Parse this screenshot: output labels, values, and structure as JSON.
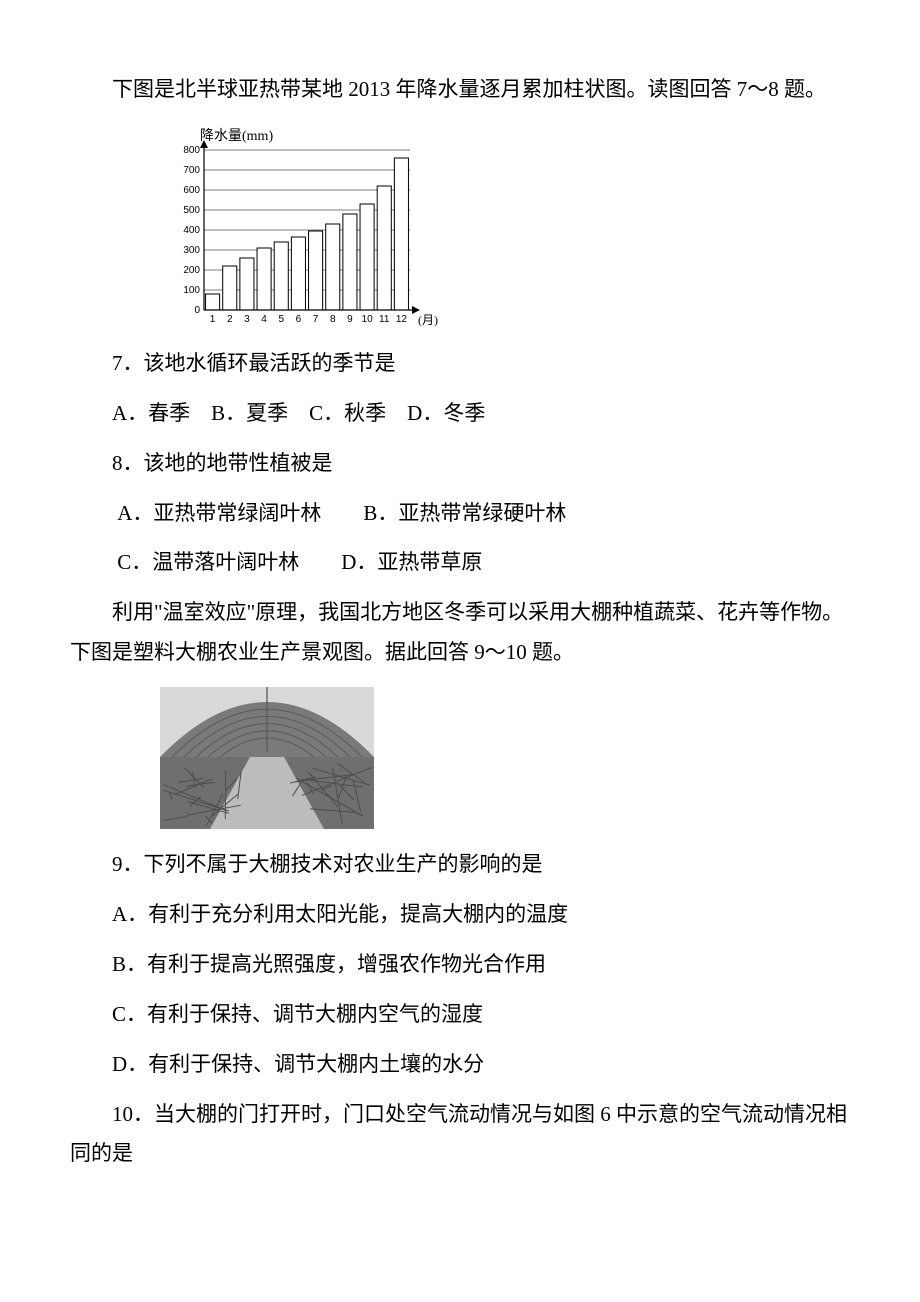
{
  "intro1": "下图是北半球亚热带某地 2013 年降水量逐月累加柱状图。读图回答 7～8 题。",
  "chart": {
    "type": "bar",
    "categories": [
      "1",
      "2",
      "3",
      "4",
      "5",
      "6",
      "7",
      "8",
      "9",
      "10",
      "11",
      "12"
    ],
    "values": [
      80,
      220,
      260,
      310,
      340,
      365,
      395,
      430,
      480,
      530,
      620,
      760
    ],
    "ylim": [
      0,
      800
    ],
    "ytick_step": 100,
    "yticks": [
      "0",
      "100",
      "200",
      "300",
      "400",
      "500",
      "600",
      "700",
      "800"
    ],
    "axis_label_y": "降水量(mm)",
    "axis_label_x": "(月)",
    "bar_color": "#ffffff",
    "bar_stroke": "#000000",
    "axis_color": "#000000",
    "grid_color": "#000000",
    "grid_on": true,
    "bar_width": 0.82,
    "tick_fontsize": 10,
    "label_fontsize": 14,
    "background": "#ffffff",
    "arrow": true
  },
  "q7": "7．该地水循环最活跃的季节是",
  "q7_opts": "A．春季　B．夏季　C．秋季　D．冬季",
  "q8": "8．该地的地带性植被是",
  "q8_optA": "A．亚热带常绿阔叶林",
  "q8_optB": "B．亚热带常绿硬叶林",
  "q8_optC": "C．温带落叶阔叶林",
  "q8_optD": "D．亚热带草原",
  "intro2": "利用\"温室效应\"原理，我国北方地区冬季可以采用大棚种植蔬菜、花卉等作物。下图是塑料大棚农业生产景观图。据此回答 9～10 题。",
  "greenhouse": {
    "type": "photo-placeholder",
    "description": "greenhouse interior bw photo",
    "sky": "#d9d9d9",
    "crop_left": "#6f6f6f",
    "crop_right": "#6f6f6f",
    "path": "#bcbcbc",
    "frame_lines": "#5a5a5a"
  },
  "q9": "9．下列不属于大棚技术对农业生产的影响的是",
  "q9_optA": "A．有利于充分利用太阳光能，提高大棚内的温度",
  "q9_optB": "B．有利于提高光照强度，增强农作物光合作用",
  "q9_optC": "C．有利于保持、调节大棚内空气的湿度",
  "q9_optD": "D．有利于保持、调节大棚内土壤的水分",
  "q10": "10．当大棚的门打开时，门口处空气流动情况与如图 6 中示意的空气流动情况相同的是"
}
